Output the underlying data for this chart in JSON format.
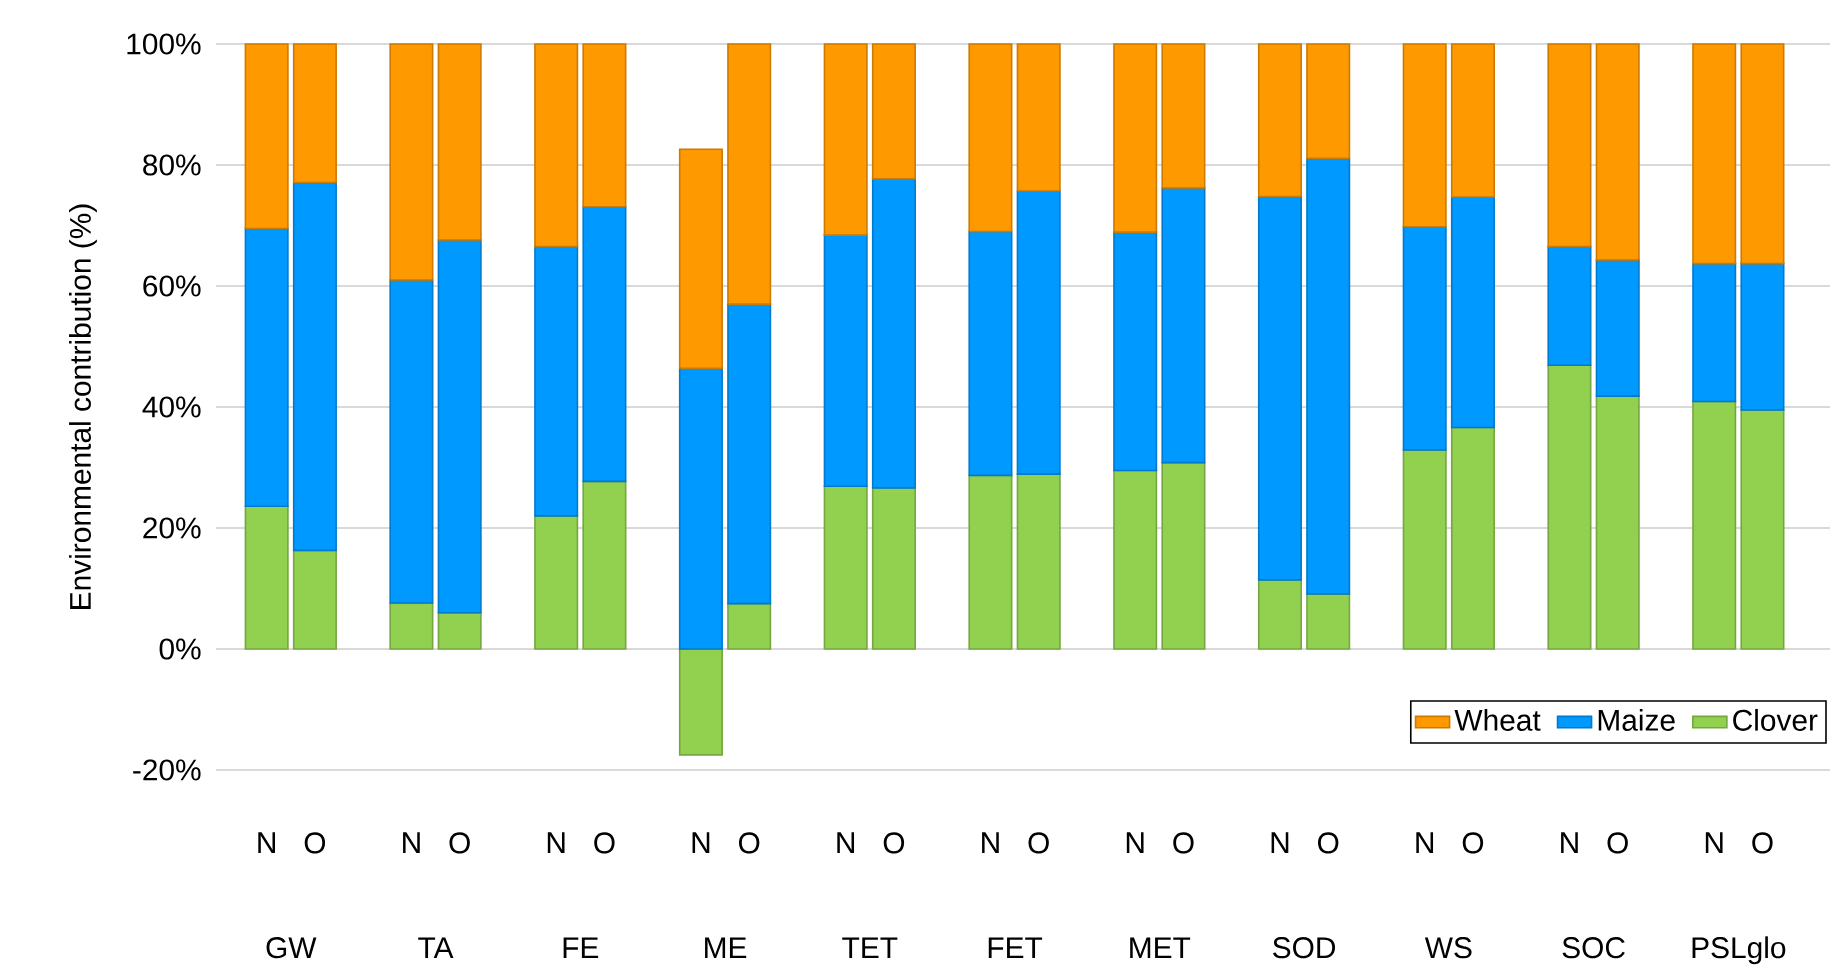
{
  "chart_data": {
    "type": "bar",
    "stacked": true,
    "ylabel": "Environmental contribution (%)",
    "categories": [
      "N",
      "O",
      "N",
      "O",
      "N",
      "O",
      "N",
      "O",
      "N",
      "O",
      "N",
      "O",
      "N",
      "O",
      "N",
      "O",
      "N",
      "O",
      "N",
      "O",
      "N",
      "O"
    ],
    "annotations": [
      "GW",
      "TA",
      "FE",
      "ME",
      "TET",
      "FET",
      "MET",
      "SOD",
      "WS",
      "SOC",
      "PSLglo"
    ],
    "series": [
      {
        "name": "Clover",
        "color": "#92d050",
        "values": [
          23.6,
          16.3,
          7.6,
          6.0,
          22.0,
          27.7,
          -17.5,
          7.5,
          26.9,
          26.6,
          28.7,
          28.9,
          29.5,
          30.8,
          11.4,
          9.1,
          32.9,
          36.6,
          46.9,
          41.8,
          40.9,
          39.5
        ]
      },
      {
        "name": "Maize",
        "color": "#0099ff",
        "values": [
          45.9,
          60.8,
          53.4,
          61.6,
          44.5,
          45.4,
          46.4,
          49.5,
          41.5,
          51.1,
          40.3,
          46.8,
          39.4,
          45.4,
          63.4,
          72.0,
          36.9,
          38.1,
          19.6,
          22.5,
          22.8,
          24.2
        ]
      },
      {
        "name": "Wheat",
        "color": "#ff9900",
        "values": [
          30.5,
          22.9,
          39.0,
          32.4,
          33.5,
          26.9,
          36.2,
          43.0,
          31.6,
          22.3,
          31.0,
          24.3,
          31.1,
          23.8,
          25.2,
          18.9,
          30.2,
          25.3,
          33.5,
          35.7,
          36.3,
          36.3
        ]
      }
    ],
    "ylim": [
      -20,
      100
    ],
    "yticks": [
      {
        "value": -20,
        "label": "-20%"
      },
      {
        "value": 0,
        "label": "0%"
      },
      {
        "value": 20,
        "label": "20%"
      },
      {
        "value": 40,
        "label": "40%"
      },
      {
        "value": 60,
        "label": "60%"
      },
      {
        "value": 80,
        "label": "80%"
      },
      {
        "value": 100,
        "label": "100%"
      }
    ],
    "grid": "y",
    "legend": "bottom right"
  }
}
